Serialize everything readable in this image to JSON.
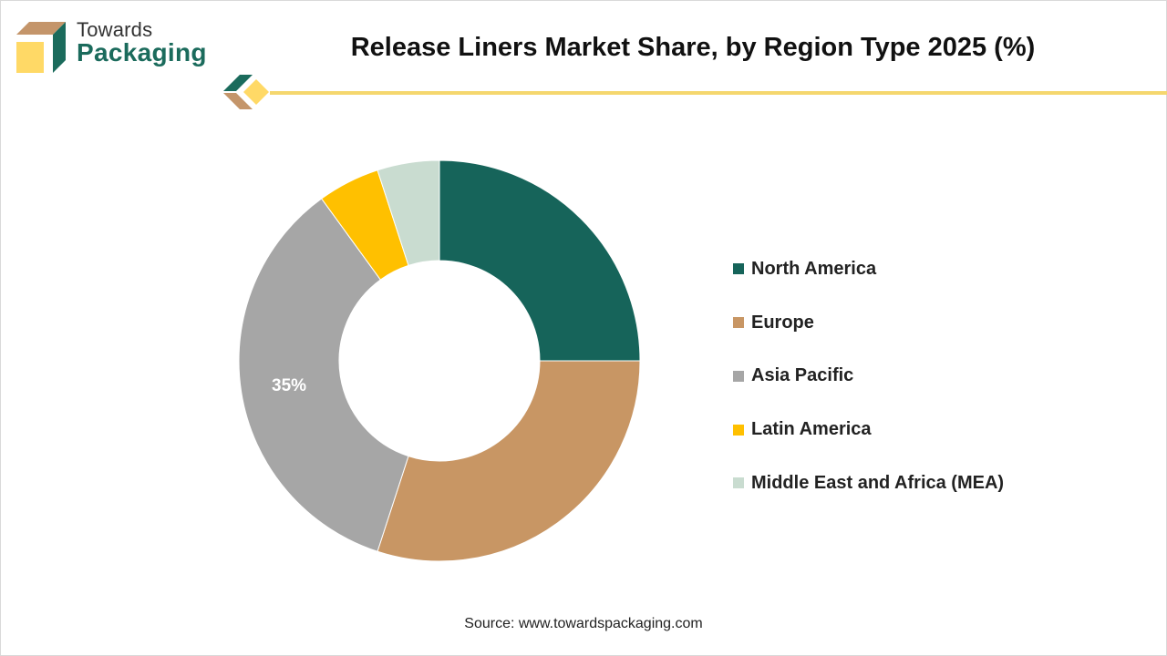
{
  "brand": {
    "line1": "Towards",
    "line2": "Packaging",
    "colors": {
      "dark_green": "#1b6b5c",
      "tan": "#c4956a",
      "yellow": "#ffd966"
    }
  },
  "header": {
    "title": "Release Liners Market Share, by Region Type 2025 (%)",
    "rule_color": "#f5d76e"
  },
  "chart_data": {
    "type": "pie",
    "donut": true,
    "title": "Release Liners Market Share, by Region Type 2025 (%)",
    "categories": [
      "North America",
      "Europe",
      "Asia Pacific",
      "Latin America",
      "Middle East and Africa (MEA)"
    ],
    "values": [
      25,
      30,
      35,
      5,
      5
    ],
    "colors": [
      "#16645a",
      "#c89664",
      "#a6a6a6",
      "#ffc000",
      "#c9dcd0"
    ],
    "data_labels": [
      "",
      "",
      "35%",
      "",
      ""
    ],
    "start_angle": "12 o'clock",
    "direction": "clockwise",
    "legend_position": "right"
  },
  "footer": {
    "source": "Source: www.towardspackaging.com"
  }
}
